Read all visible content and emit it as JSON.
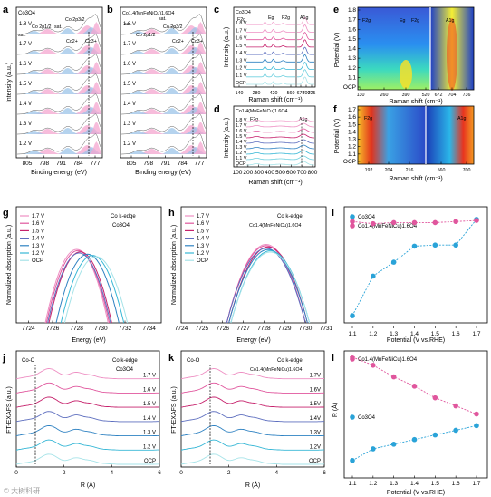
{
  "colors": {
    "s_1_8": "#f2a8d0",
    "s_1_7": "#ee8fc3",
    "s_1_6": "#e0569d",
    "s_1_5": "#c6226c",
    "s_1_4": "#5e6fbf",
    "s_1_3": "#2f82c2",
    "s_1_2": "#37b7d6",
    "s_1_1": "#6fd0df",
    "s_ocp": "#a6e3e8",
    "xps_fill": "#f4a6cf",
    "xps_fill2": "#9cc4e8",
    "co3o4_pts": "#2aa3d8",
    "heo_pts": "#e0569d"
  },
  "watermark": "© 大树科研",
  "chart_data": [
    {
      "id": "a",
      "type": "line",
      "letter": "a",
      "sample": "Co3O4",
      "xlabel": "Binding energy (eV)",
      "ylabel": "Intensity (a.u.)",
      "xticks": [
        "805",
        "798",
        "791",
        "784",
        "777"
      ],
      "levels": [
        "1.8 V",
        "1.7 V",
        "1.6 V",
        "1.5 V",
        "1.4 V",
        "1.3 V",
        "1.2 V"
      ],
      "annotations": [
        "sat.",
        "Co 2p1/2",
        "sat.",
        "Co 2p3/2",
        "Co2+",
        "Co3+"
      ]
    },
    {
      "id": "b",
      "type": "line",
      "letter": "b",
      "sample": "Co1.4(MnFeNiCu)1.6O4",
      "xlabel": "Binding energy (eV)",
      "xticks": [
        "805",
        "798",
        "791",
        "784",
        "777"
      ],
      "levels": [
        "1.8 V",
        "1.7 V",
        "1.6 V",
        "1.5 V",
        "1.4 V",
        "1.3 V",
        "1.2 V"
      ],
      "annotations": [
        "sat.",
        "Co 2p1/2",
        "sat.",
        "Co 2p3/2",
        "Co2+",
        "Co3+"
      ]
    },
    {
      "id": "c",
      "type": "line",
      "letter": "c",
      "sample": "Co3O4",
      "xlabel": "Raman shift (cm⁻¹)",
      "ylabel": "Intensity (a.u.)",
      "xticks": [
        "140",
        "280",
        "420",
        "560",
        "675",
        "700",
        "725"
      ],
      "levels": [
        "1.8 V",
        "1.7 V",
        "1.6 V",
        "1.5 V",
        "1.4 V",
        "1.3 V",
        "1.2 V",
        "1.1 V",
        "OCP"
      ],
      "peaks": [
        "F2g",
        "Eg",
        "F2g",
        "A1g"
      ]
    },
    {
      "id": "d",
      "type": "line",
      "letter": "d",
      "sample": "Co1.4(MnFeNiCu)1.6O4",
      "xlabel": "Raman shift (cm⁻¹)",
      "ylabel": "Intensity (a.u.)",
      "xticks": [
        "100",
        "200",
        "300",
        "400",
        "500",
        "600",
        "700",
        "800"
      ],
      "levels": [
        "1.8 V",
        "1.7 V",
        "1.6 V",
        "1.5 V",
        "1.4 V",
        "1.3 V",
        "1.2 V",
        "1.1 V",
        "OCP"
      ],
      "peaks": [
        "F2g",
        "A1g"
      ]
    },
    {
      "id": "e",
      "type": "heatmap",
      "letter": "e",
      "ylabel": "Potential (V)",
      "xlabel": "Raman shift (cm⁻¹)",
      "xticks": [
        "130",
        "260",
        "390",
        "520",
        "672",
        "704",
        "736"
      ],
      "yticks": [
        "1.8",
        "1.7",
        "1.6",
        "1.5",
        "1.4",
        "1.3",
        "1.2",
        "1.1",
        "OCP"
      ],
      "peaks": [
        "F2g",
        "Eg",
        "F2g",
        "A1g"
      ]
    },
    {
      "id": "f",
      "type": "heatmap",
      "letter": "f",
      "ylabel": "Potential (V)",
      "xlabel": "Raman shift (cm⁻¹)",
      "xticks": [
        "192",
        "204",
        "216",
        "560",
        "700"
      ],
      "yticks": [
        "1.7",
        "1.6",
        "1.5",
        "1.4",
        "1.3",
        "1.2",
        "1.1",
        "OCP"
      ],
      "peaks": [
        "F2g",
        "A1g"
      ]
    },
    {
      "id": "g",
      "type": "line",
      "letter": "g",
      "title_edge": "Co k-edge",
      "sample": "Co3O4",
      "xlabel": "Energy (eV)",
      "ylabel": "Normalized absorption (a.u.)",
      "xticks": [
        "7724",
        "7726",
        "7728",
        "7730",
        "7732",
        "7734"
      ],
      "xlim": [
        7723,
        7735
      ],
      "legend": [
        "1.7 V",
        "1.6 V",
        "1.5 V",
        "1.4 V",
        "1.3 V",
        "1.2 V",
        "OCP"
      ],
      "peak_positions": [
        7728.0,
        7728.1,
        7728.3,
        7728.2,
        7728.9,
        7729.3,
        7729.6
      ]
    },
    {
      "id": "h",
      "type": "line",
      "letter": "h",
      "title_edge": "Co k-edge",
      "sample": "Co1.4(MnFeNiCu)1.6O4",
      "xlabel": "Energy (eV)",
      "ylabel": "Normalized absorption (a.u.)",
      "xticks": [
        "7724",
        "7725",
        "7726",
        "7727",
        "7728",
        "7729",
        "7730",
        "7731"
      ],
      "xlim": [
        7724,
        7731
      ],
      "legend": [
        "1.7 V",
        "1.6 V",
        "1.5 V",
        "1.4 V",
        "1.3 V",
        "1.2 V",
        "OCP"
      ],
      "peak_positions": [
        7728.1,
        7728.1,
        7728.2,
        7728.1,
        7728.2,
        7728.3,
        7728.3
      ]
    },
    {
      "id": "i",
      "type": "scatter",
      "letter": "i",
      "xlabel": "Potential (V vs.RHE)",
      "xticks": [
        "1.1",
        "1.2",
        "1.3",
        "1.4",
        "1.5",
        "1.6",
        "1.7"
      ],
      "series": [
        {
          "name": "Co3O4",
          "x": [
            1.1,
            1.2,
            1.3,
            1.4,
            1.5,
            1.6,
            1.7
          ],
          "values": [
            0.05,
            0.42,
            0.55,
            0.7,
            0.71,
            0.71,
            0.95
          ]
        },
        {
          "name": "Co1.4(MnFeNiCu)1.6O4",
          "x": [
            1.1,
            1.2,
            1.3,
            1.4,
            1.5,
            1.6,
            1.7
          ],
          "values": [
            0.93,
            0.91,
            0.92,
            0.92,
            0.92,
            0.93,
            0.94
          ]
        }
      ]
    },
    {
      "id": "j",
      "type": "line",
      "letter": "j",
      "xlabel": "R (Å)",
      "ylabel": "FT-EXAFS (a.u.)",
      "xticks": [
        "0",
        "2",
        "4",
        "6"
      ],
      "xlim": [
        0,
        6
      ],
      "title_edge": "Co k-edge",
      "sample": "Co3O4",
      "marker": "Co-O",
      "levels": [
        "1.7 V",
        "1.6 V",
        "1.5 V",
        "1.4 V",
        "1.3 V",
        "1.2 V",
        "OCP"
      ]
    },
    {
      "id": "k",
      "type": "line",
      "letter": "k",
      "xlabel": "R (Å)",
      "ylabel": "FT-EXAFS (a.u.)",
      "xticks": [
        "0",
        "2",
        "4",
        "6"
      ],
      "xlim": [
        0,
        6
      ],
      "title_edge": "Co k-edge",
      "sample": "Co1.4(MnFeNiCu)1.6O4",
      "marker": "Co-O",
      "levels": [
        "1.7V",
        "1.6V",
        "1.5V",
        "1.4V",
        "1.3V",
        "1.2V",
        "OCP"
      ]
    },
    {
      "id": "l",
      "type": "scatter",
      "letter": "l",
      "xlabel": "Potential (V vs.RHE)",
      "ylabel": "R (Å)",
      "xticks": [
        "1.1",
        "1.2",
        "1.3",
        "1.4",
        "1.5",
        "1.6",
        "1.7"
      ],
      "series": [
        {
          "name": "Co1.4(MnFeNiCu)1.6O4",
          "x": [
            1.1,
            1.2,
            1.3,
            1.4,
            1.5,
            1.6,
            1.7
          ],
          "values": [
            0.97,
            0.9,
            0.8,
            0.72,
            0.62,
            0.55,
            0.48
          ]
        },
        {
          "name": "Co3O4",
          "x": [
            1.1,
            1.2,
            1.3,
            1.4,
            1.5,
            1.6,
            1.7
          ],
          "values": [
            0.08,
            0.18,
            0.22,
            0.26,
            0.3,
            0.34,
            0.38
          ]
        }
      ]
    }
  ]
}
